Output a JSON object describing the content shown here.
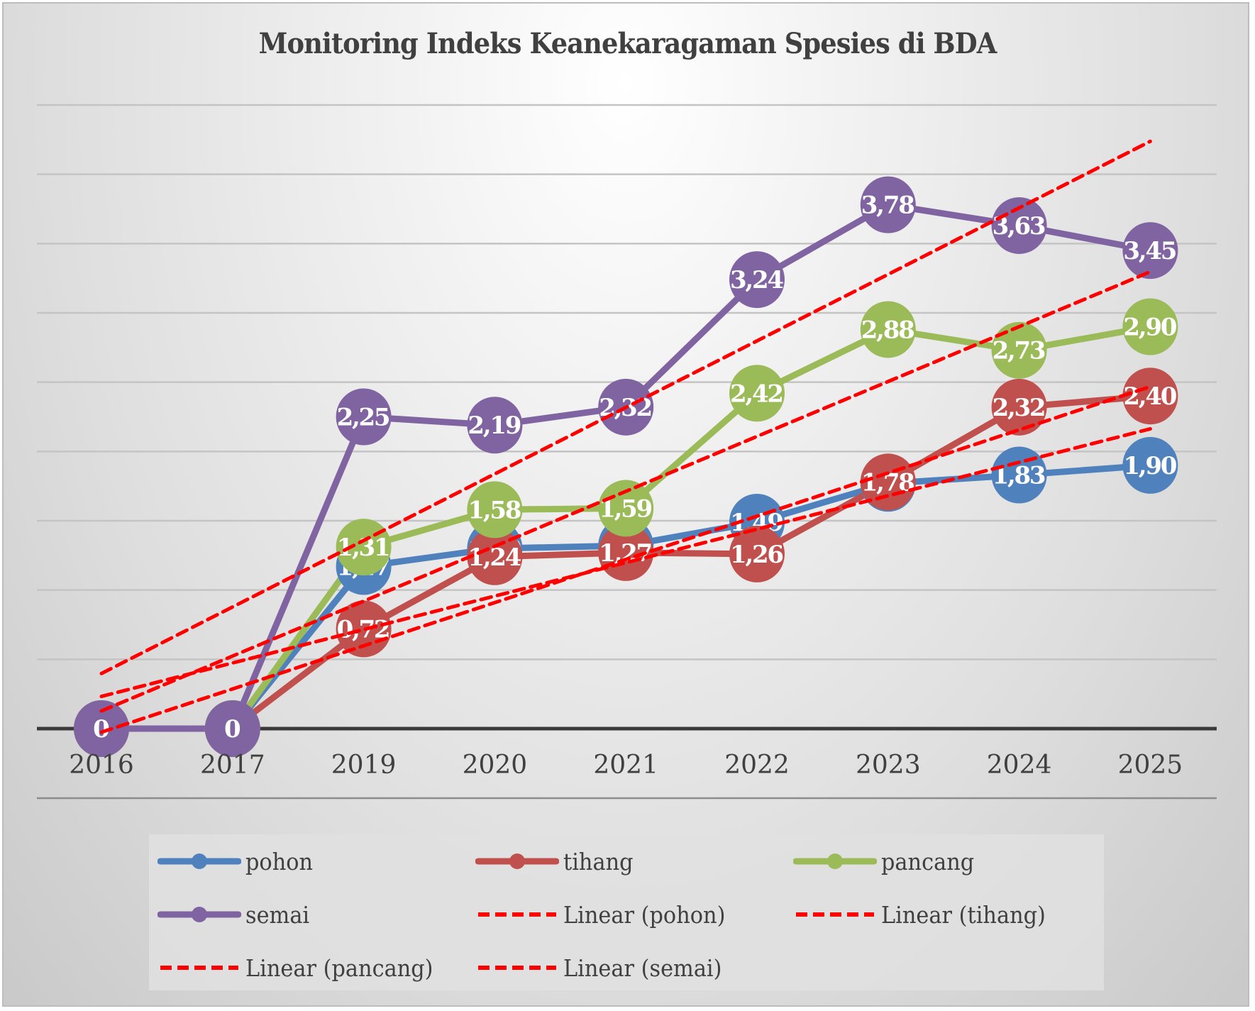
{
  "chart_data": {
    "type": "line",
    "title": "Monitoring Indeks Keanekaragaman Spesies di BDA",
    "xlabel": "",
    "ylabel": "",
    "categories": [
      "2016",
      "2017",
      "2019",
      "2020",
      "2021",
      "2022",
      "2023",
      "2024",
      "2025"
    ],
    "ylim": [
      0,
      4.5
    ],
    "ytick_step": 0.5,
    "grid": true,
    "yaxis_labels_visible": false,
    "legend_position": "bottom",
    "series": [
      {
        "name": "pohon",
        "color": "#4f81bd",
        "values": [
          0,
          0,
          1.17,
          1.3,
          1.32,
          1.49,
          1.77,
          1.83,
          1.9
        ],
        "labels": [
          "0",
          "0",
          "1,17",
          "1,30",
          "1,32",
          "1,49",
          "1,77",
          "1,83",
          "1,90"
        ]
      },
      {
        "name": "tihang",
        "color": "#c0504d",
        "values": [
          0,
          0,
          0.72,
          1.24,
          1.27,
          1.26,
          1.78,
          2.32,
          2.4
        ],
        "labels": [
          "0",
          "0",
          "0,72",
          "1,24",
          "1,27",
          "1,26",
          "1,78",
          "2,32",
          "2,40"
        ]
      },
      {
        "name": "pancang",
        "color": "#9bbb59",
        "values": [
          0,
          0,
          1.31,
          1.58,
          1.59,
          2.42,
          2.88,
          2.73,
          2.9
        ],
        "labels": [
          "0",
          "0",
          "1,31",
          "1,58",
          "1,59",
          "2,42",
          "2,88",
          "2,73",
          "2,90"
        ]
      },
      {
        "name": "semai",
        "color": "#8064a2",
        "values": [
          0,
          0,
          2.25,
          2.19,
          2.32,
          3.24,
          3.78,
          3.63,
          3.45
        ],
        "labels": [
          "0",
          "0",
          "2,25",
          "2,19",
          "2,32",
          "3,24",
          "3,78",
          "3,63",
          "3,45"
        ]
      }
    ],
    "trendlines": [
      {
        "name": "Linear (pohon)",
        "of": "pohon",
        "type": "linear",
        "color": "#ff0000",
        "style": "dashed"
      },
      {
        "name": "Linear (tihang)",
        "of": "tihang",
        "type": "linear",
        "color": "#ff0000",
        "style": "dashed"
      },
      {
        "name": "Linear (pancang)",
        "of": "pancang",
        "type": "linear",
        "color": "#ff0000",
        "style": "dashed"
      },
      {
        "name": "Linear (semai)",
        "of": "semai",
        "type": "linear",
        "color": "#ff0000",
        "style": "dashed"
      }
    ],
    "legend": [
      "pohon",
      "tihang",
      "pancang",
      "semai",
      "Linear (pohon)",
      "Linear (tihang)",
      "Linear (pancang)",
      "Linear (semai)"
    ]
  }
}
